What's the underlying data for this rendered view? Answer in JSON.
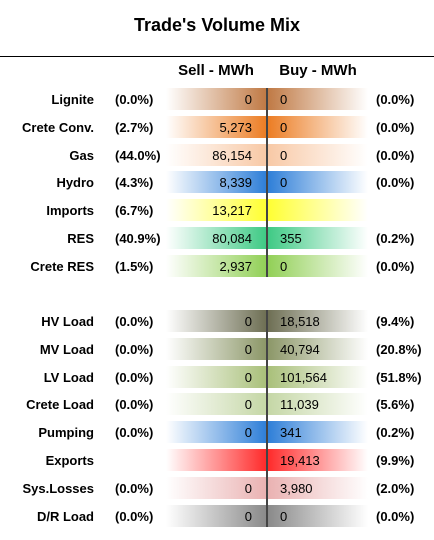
{
  "title": "Trade's Volume Mix",
  "col_sell": "Sell - MWh",
  "col_buy": "Buy - MWh",
  "chart_data": {
    "type": "table",
    "title": "Trade's Volume Mix",
    "columns": [
      "Sell - MWh",
      "Buy - MWh"
    ],
    "groups": [
      {
        "name": "generation",
        "rows": [
          {
            "label": "Lignite",
            "sell_pct": "(0.0%)",
            "sell": "0",
            "buy": "0",
            "buy_pct": "(0.0%)",
            "color": "#c07a45"
          },
          {
            "label": "Crete Conv.",
            "sell_pct": "(2.7%)",
            "sell": "5,273",
            "buy": "0",
            "buy_pct": "(0.0%)",
            "color": "#ec7d24"
          },
          {
            "label": "Gas",
            "sell_pct": "(44.0%)",
            "sell": "86,154",
            "buy": "0",
            "buy_pct": "(0.0%)",
            "color": "#f8c9a6"
          },
          {
            "label": "Hydro",
            "sell_pct": "(4.3%)",
            "sell": "8,339",
            "buy": "0",
            "buy_pct": "(0.0%)",
            "color": "#2f7fd8"
          },
          {
            "label": "Imports",
            "sell_pct": "(6.7%)",
            "sell": "13,217",
            "buy": "",
            "buy_pct": "",
            "color": "#ffff33"
          },
          {
            "label": "RES",
            "sell_pct": "(40.9%)",
            "sell": "80,084",
            "buy": "355",
            "buy_pct": "(0.2%)",
            "color": "#3fca85"
          },
          {
            "label": "Crete RES",
            "sell_pct": "(1.5%)",
            "sell": "2,937",
            "buy": "0",
            "buy_pct": "(0.0%)",
            "color": "#92d057"
          }
        ]
      },
      {
        "name": "load",
        "rows": [
          {
            "label": "HV Load",
            "sell_pct": "(0.0%)",
            "sell": "0",
            "buy": "18,518",
            "buy_pct": "(9.4%)",
            "color": "#6e6f54"
          },
          {
            "label": "MV Load",
            "sell_pct": "(0.0%)",
            "sell": "0",
            "buy": "40,794",
            "buy_pct": "(20.8%)",
            "color": "#8c9768"
          },
          {
            "label": "LV Load",
            "sell_pct": "(0.0%)",
            "sell": "0",
            "buy": "101,564",
            "buy_pct": "(51.8%)",
            "color": "#a9c07a"
          },
          {
            "label": "Crete Load",
            "sell_pct": "(0.0%)",
            "sell": "0",
            "buy": "11,039",
            "buy_pct": "(5.6%)",
            "color": "#c5d7a6"
          },
          {
            "label": "Pumping",
            "sell_pct": "(0.0%)",
            "sell": "0",
            "buy": "341",
            "buy_pct": "(0.2%)",
            "color": "#2f7fd8"
          },
          {
            "label": "Exports",
            "sell_pct": "",
            "sell": "",
            "buy": "19,413",
            "buy_pct": "(9.9%)",
            "color": "#ff2b2b"
          },
          {
            "label": "Sys.Losses",
            "sell_pct": "(0.0%)",
            "sell": "0",
            "buy": "3,980",
            "buy_pct": "(2.0%)",
            "color": "#eab2b2"
          },
          {
            "label": "D/R Load",
            "sell_pct": "(0.0%)",
            "sell": "0",
            "buy": "0",
            "buy_pct": "(0.0%)",
            "color": "#8a8a8a"
          }
        ]
      }
    ]
  }
}
